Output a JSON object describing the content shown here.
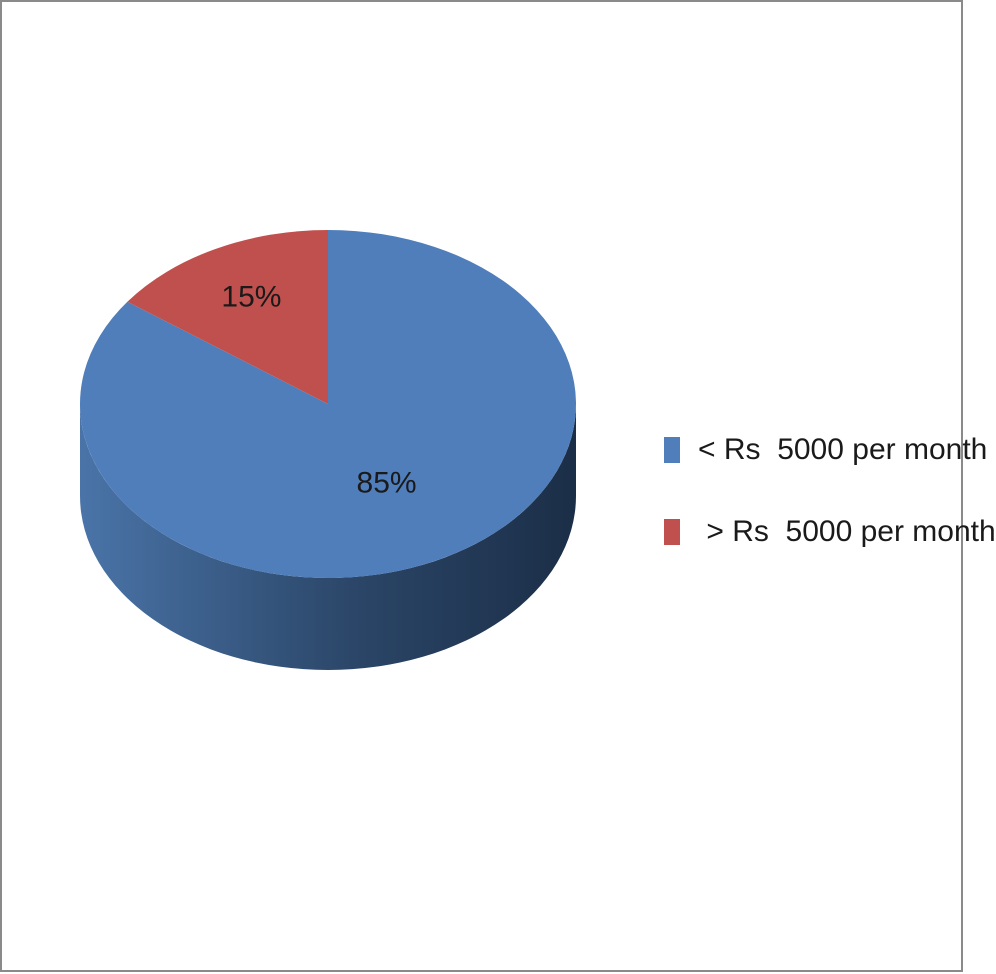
{
  "chart_data": {
    "type": "pie",
    "style": "3d",
    "categories": [
      "< Rs  5000 per month",
      " > Rs  5000 per month"
    ],
    "values": [
      85,
      15
    ],
    "value_labels": [
      "85%",
      "15%"
    ],
    "colors": [
      "#4F7EBB",
      "#C0504D"
    ],
    "side_colors": [
      "#2E4D74",
      "#7A2F2D"
    ],
    "legend_position": "right",
    "title": ""
  }
}
